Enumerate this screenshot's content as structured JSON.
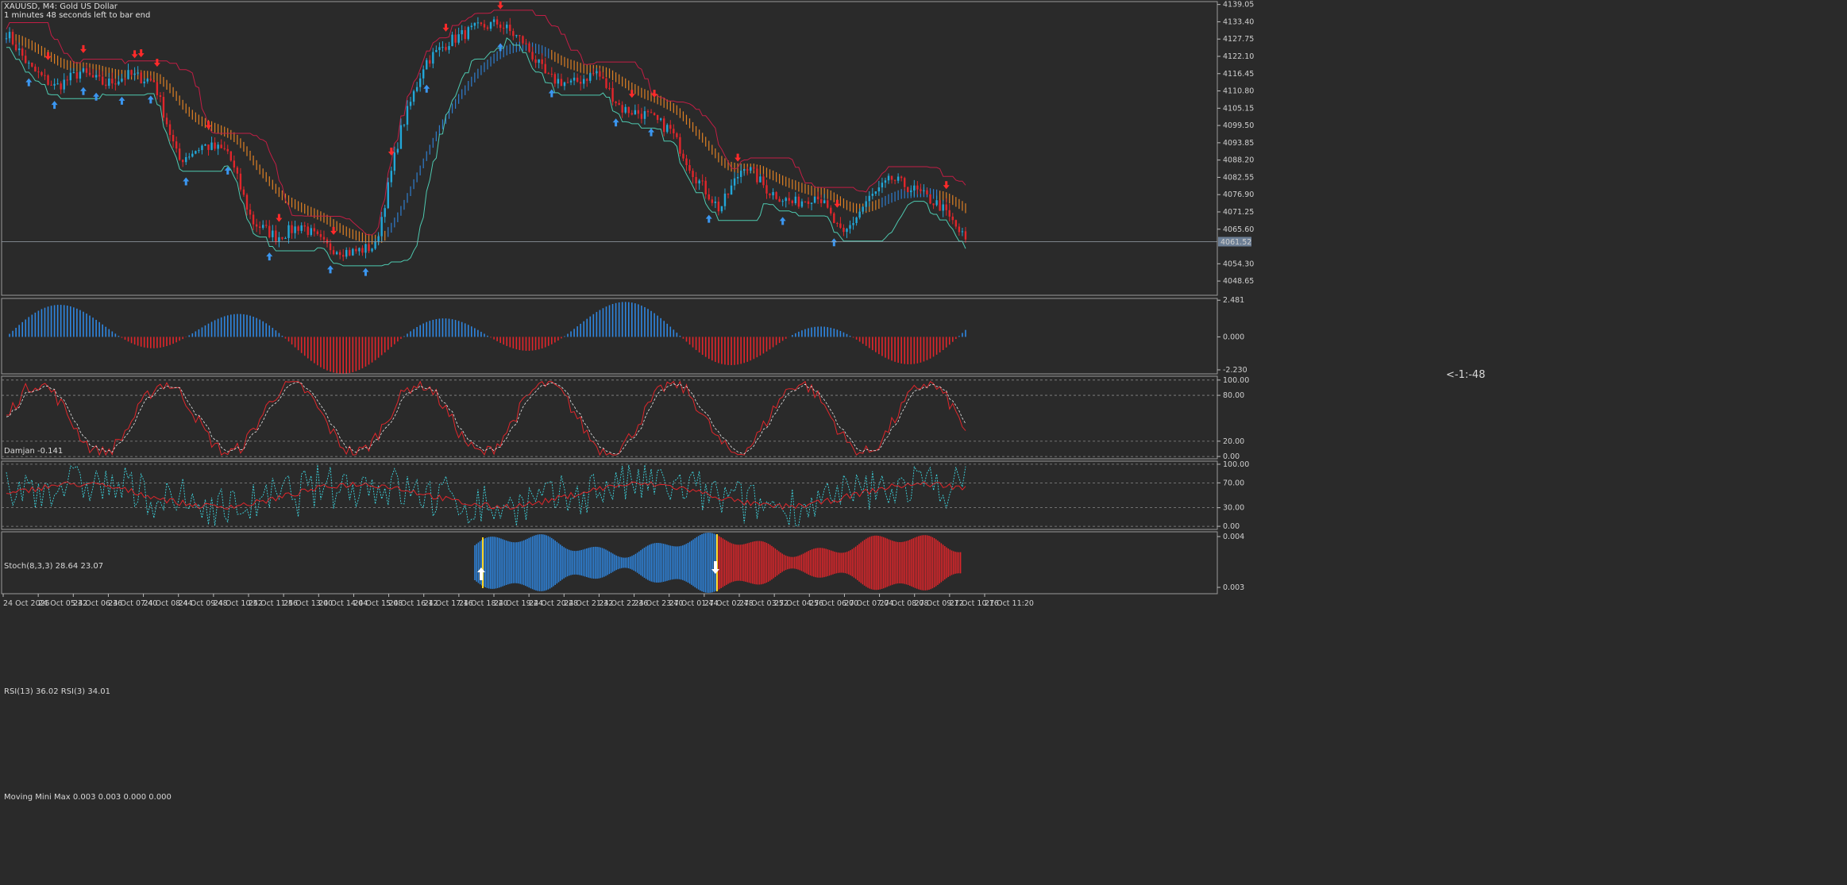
{
  "header": {
    "symbol": "XAUUSD, M4:  Gold US Dollar",
    "countdown": "1 minutes 48 seconds left to bar end",
    "bar_timer": "<-1:-48",
    "current_price": "4061.52"
  },
  "colors": {
    "background": "#2a2a2a",
    "bull": "#22a7d8",
    "bear": "#e0262b",
    "grid": "#8a8a8a",
    "orange_band": "#f28a24",
    "blue_band": "#2f86e0",
    "teal_line": "#4ec9b0",
    "crimson_line": "#c21e45",
    "arrow_up": "#3b96f0",
    "arrow_down": "#ff2a2a"
  },
  "panes": {
    "damjan": {
      "title": "Damjan -0.141",
      "ticks": [
        "2.481",
        "0.000",
        "-2.230"
      ]
    },
    "stoch": {
      "title": "Stoch(8,3,3) 28.64 23.07",
      "ticks": [
        "100.00",
        "80.00",
        "20.00",
        "0.00"
      ]
    },
    "rsi": {
      "title": "RSI(13) 36.02 RSI(3) 34.01",
      "ticks": [
        "100.00",
        "70.00",
        "30.00",
        "0.00"
      ]
    },
    "mmm": {
      "title": "Moving Mini Max 0.003 0.003 0.000 0.000",
      "ticks": [
        "0.004",
        "0.003"
      ]
    }
  },
  "chart_data": {
    "type": "candlestick",
    "symbol": "XAUUSD",
    "timeframe": "M4",
    "price_axis": [
      "4139.05",
      "4133.40",
      "4127.75",
      "4122.10",
      "4116.45",
      "4110.80",
      "4105.15",
      "4099.50",
      "4093.85",
      "4088.20",
      "4082.55",
      "4076.90",
      "4071.25",
      "4065.60",
      "4054.30",
      "4048.65"
    ],
    "ylim": [
      4044,
      4140
    ],
    "time_axis": [
      "24 Oct 2025",
      "24 Oct 05:32",
      "24 Oct 06:36",
      "24 Oct 07:40",
      "24 Oct 08:44",
      "24 Oct 09:48",
      "24 Oct 10:52",
      "24 Oct 11:56",
      "24 Oct 13:00",
      "24 Oct 14:04",
      "24 Oct 15:08",
      "24 Oct 16:12",
      "24 Oct 17:16",
      "24 Oct 18:20",
      "24 Oct 19:24",
      "24 Oct 20:28",
      "24 Oct 21:32",
      "24 Oct 22:36",
      "24 Oct 23:40",
      "27 Oct 01:44",
      "27 Oct 02:48",
      "27 Oct 03:52",
      "27 Oct 04:56",
      "27 Oct 06:00",
      "27 Oct 07:04",
      "27 Oct 08:08",
      "27 Oct 09:12",
      "27 Oct 10:16",
      "27 Oct 11:20"
    ],
    "close_profile": [
      4130,
      4118,
      4112,
      4117,
      4113,
      4116,
      4114,
      4088,
      4093,
      4091,
      4068,
      4063,
      4067,
      4060,
      4058,
      4060,
      4097,
      4120,
      4127,
      4131,
      4133,
      4127,
      4115,
      4113,
      4117,
      4105,
      4103,
      4098,
      4083,
      4072,
      4087,
      4078,
      4074,
      4077,
      4063,
      4075,
      4082,
      4078,
      4073,
      4062
    ],
    "series": [
      {
        "name": "Damjan",
        "range": [
          -2.23,
          2.481
        ]
      },
      {
        "name": "Stoch(8,3,3)",
        "values_last": [
          28.64,
          23.07
        ]
      },
      {
        "name": "RSI(13)",
        "value_last": 36.02
      },
      {
        "name": "RSI(3)",
        "value_last": 34.01
      },
      {
        "name": "Moving Mini Max",
        "values_last": [
          0.003,
          0.003,
          0.0,
          0.0
        ]
      }
    ]
  }
}
